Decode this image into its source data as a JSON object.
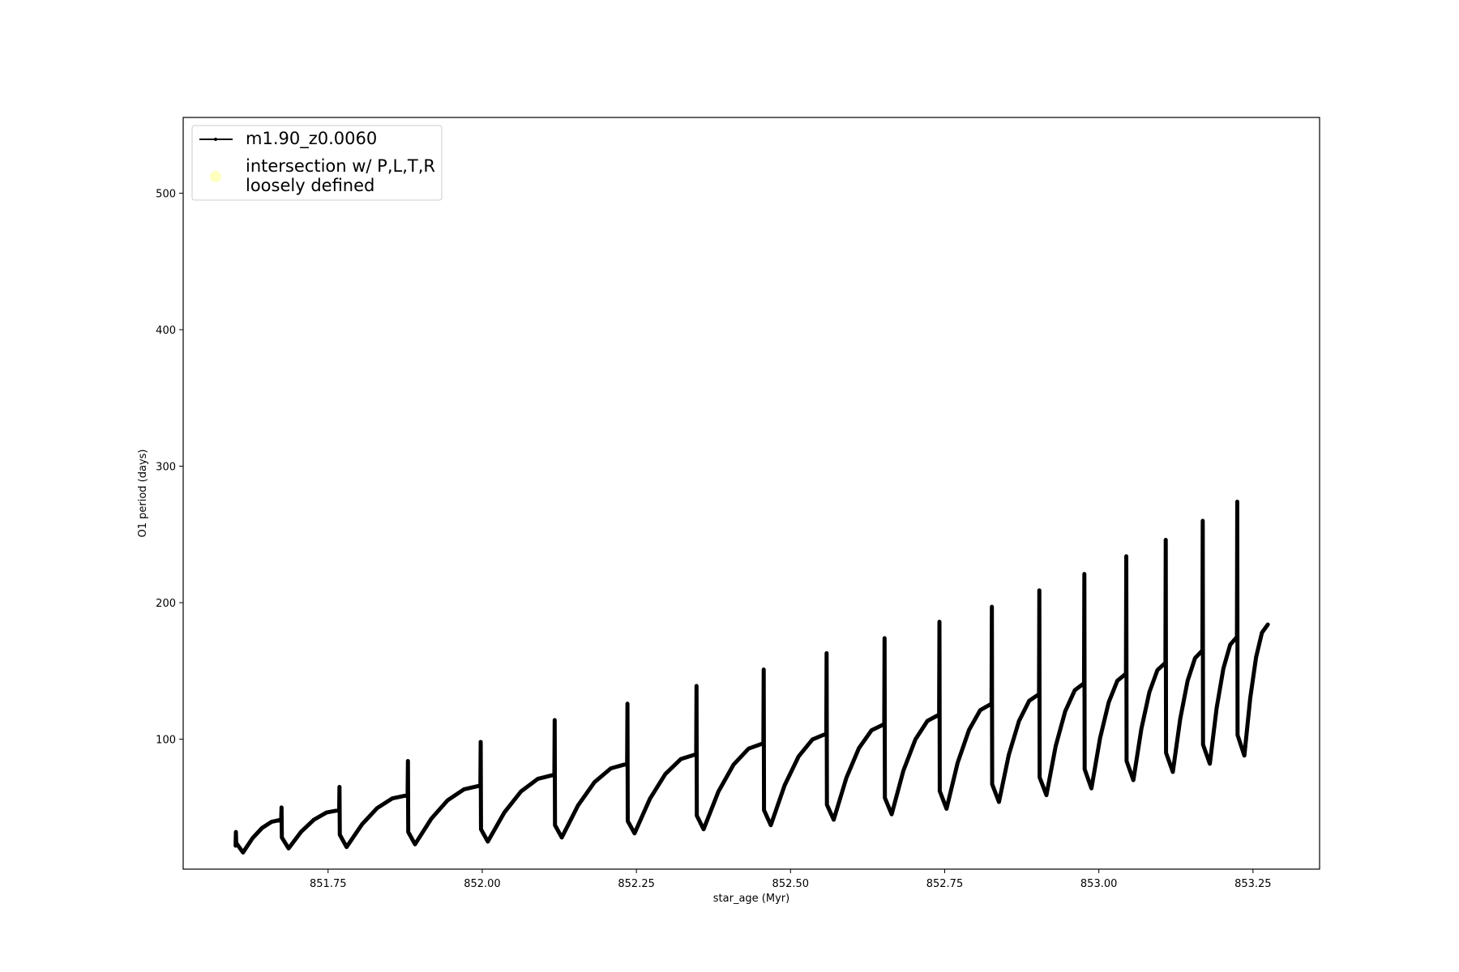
{
  "chart_data": {
    "type": "line",
    "xlabel": "star_age (Myr)",
    "ylabel": "O1 period (days)",
    "xlim": [
      851.515,
      853.358
    ],
    "ylim": [
      4.8,
      555.5
    ],
    "xticks": [
      851.75,
      {
        "value": 852,
        "label": "852.00"
      },
      852.25,
      {
        "value": 852.5,
        "label": "852.50"
      },
      852.75,
      {
        "value": 853,
        "label": "853.00"
      },
      853.25
    ],
    "yticks": [
      100,
      200,
      300,
      400,
      500
    ],
    "legend": "upper left",
    "series": [
      {
        "name": "m1.90_z0.0060",
        "color": "#000000",
        "x": [
          851.6,
          851.6005,
          851.601,
          851.612,
          851.6275,
          851.643,
          851.6585,
          851.674,
          851.6745,
          851.675,
          851.686,
          851.7065,
          851.727,
          851.7475,
          851.768,
          851.7685,
          851.769,
          851.78,
          851.805,
          851.8295,
          851.854,
          851.879,
          851.8795,
          851.88,
          851.891,
          851.9175,
          851.944,
          851.9705,
          851.997,
          851.9975,
          851.998,
          852.009,
          852.036,
          852.063,
          852.09,
          852.117,
          852.1175,
          852.118,
          852.129,
          852.1555,
          852.182,
          852.2085,
          852.235,
          852.2355,
          852.236,
          852.247,
          852.272,
          852.297,
          852.322,
          852.347,
          852.3475,
          852.348,
          852.359,
          852.383,
          852.4075,
          852.432,
          852.456,
          852.4565,
          852.457,
          852.468,
          852.4905,
          852.513,
          852.5355,
          852.558,
          852.5585,
          852.559,
          852.57,
          852.5905,
          852.611,
          852.6315,
          852.652,
          852.6525,
          852.653,
          852.664,
          852.683,
          852.7025,
          852.722,
          852.741,
          852.7415,
          852.742,
          852.753,
          852.771,
          852.7895,
          852.8075,
          852.826,
          852.8265,
          852.827,
          852.838,
          852.854,
          852.8705,
          852.887,
          852.903,
          852.9035,
          852.904,
          852.915,
          852.93,
          852.9455,
          852.961,
          852.976,
          852.9765,
          852.977,
          852.988,
          853.002,
          853.016,
          853.03,
          853.044,
          853.0445,
          853.045,
          853.056,
          853.069,
          853.082,
          853.095,
          853.108,
          853.1085,
          853.109,
          853.12,
          853.132,
          853.144,
          853.156,
          853.168,
          853.1685,
          853.169,
          853.18,
          853.191,
          853.202,
          853.213,
          853.224,
          853.2245,
          853.225,
          853.236,
          853.2455,
          853.255,
          853.2645,
          853.274
        ],
        "values": [
          22,
          32,
          24,
          17,
          27.5,
          35,
          39.5,
          41,
          50,
          28,
          20,
          32.3,
          41,
          46.3,
          48,
          65,
          30,
          21,
          37.6,
          49.5,
          56.6,
          59,
          84,
          32,
          23,
          41.8,
          55.3,
          63.3,
          66,
          98,
          34,
          25,
          46.4,
          61.8,
          70.9,
          74,
          114,
          37,
          28,
          51.6,
          68.5,
          78.6,
          82,
          126,
          40,
          31,
          56.4,
          74.5,
          85.4,
          89,
          139,
          44,
          34,
          61.6,
          81.3,
          93.1,
          97,
          151,
          48,
          37,
          66.3,
          87.3,
          99.8,
          104,
          163,
          52,
          41,
          71.6,
          93.5,
          106.6,
          111,
          174,
          57,
          45,
          76.9,
          99.8,
          113.4,
          118,
          186,
          62,
          49,
          82.7,
          106.8,
          121.2,
          126,
          197,
          67,
          54,
          88.6,
          113.3,
          128.1,
          133,
          209,
          72,
          59,
          94.9,
          120.5,
          135.9,
          141,
          221,
          78,
          64,
          100.8,
          127,
          142.8,
          148,
          234,
          84,
          70,
          107.6,
          134.5,
          150.6,
          156,
          246,
          90,
          76,
          114.9,
          142.8,
          159.4,
          165,
          260,
          96,
          82,
          122.7,
          151.8,
          169.2,
          175,
          274,
          103,
          88,
          130,
          160,
          178,
          184
        ]
      },
      {
        "name": "intersection w/ P,L,T,R\nloosely defined",
        "color": "#ffffc0",
        "x": [],
        "values": []
      }
    ]
  }
}
